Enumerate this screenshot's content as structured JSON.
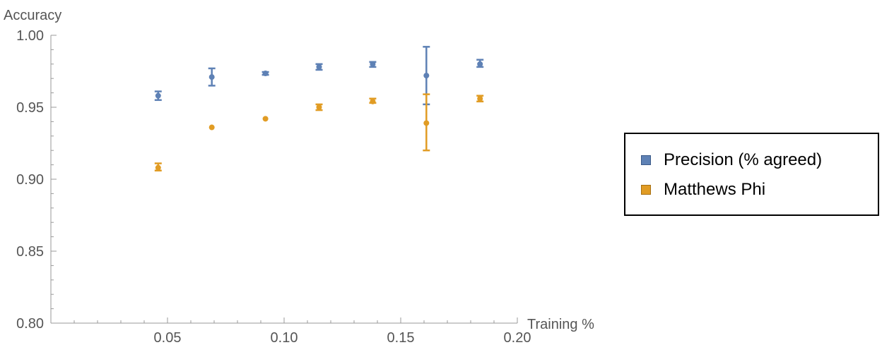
{
  "chart_data": {
    "type": "scatter",
    "xlabel": "Training %",
    "ylabel": "Accuracy",
    "xlim": [
      0.0,
      0.2
    ],
    "ylim": [
      0.8,
      1.0
    ],
    "x_ticks": [
      "0.05",
      "0.10",
      "0.15",
      "0.20"
    ],
    "x_tick_values": [
      0.05,
      0.1,
      0.15,
      0.2
    ],
    "y_ticks": [
      "0.80",
      "0.85",
      "0.90",
      "0.95",
      "1.00"
    ],
    "y_tick_values": [
      0.8,
      0.85,
      0.9,
      0.95,
      1.0
    ],
    "grid": false,
    "legend_position": "right",
    "error_bars": true,
    "series": [
      {
        "name": "Precision (% agreed)",
        "color": "#5e81b5",
        "points": [
          {
            "x": 0.046,
            "y": 0.958,
            "low": 0.955,
            "high": 0.961
          },
          {
            "x": 0.069,
            "y": 0.971,
            "low": 0.965,
            "high": 0.977
          },
          {
            "x": 0.092,
            "y": 0.9735,
            "low": 0.9725,
            "high": 0.9745
          },
          {
            "x": 0.115,
            "y": 0.978,
            "low": 0.976,
            "high": 0.98
          },
          {
            "x": 0.138,
            "y": 0.98,
            "low": 0.978,
            "high": 0.9815
          },
          {
            "x": 0.161,
            "y": 0.972,
            "low": 0.952,
            "high": 0.992
          },
          {
            "x": 0.184,
            "y": 0.98,
            "low": 0.978,
            "high": 0.983
          }
        ]
      },
      {
        "name": "Matthews Phi",
        "color": "#e19c24",
        "points": [
          {
            "x": 0.046,
            "y": 0.908,
            "low": 0.906,
            "high": 0.911
          },
          {
            "x": 0.069,
            "y": 0.936,
            "low": 0.936,
            "high": 0.936
          },
          {
            "x": 0.092,
            "y": 0.942,
            "low": 0.942,
            "high": 0.942
          },
          {
            "x": 0.115,
            "y": 0.95,
            "low": 0.948,
            "high": 0.952
          },
          {
            "x": 0.138,
            "y": 0.954,
            "low": 0.953,
            "high": 0.956
          },
          {
            "x": 0.161,
            "y": 0.939,
            "low": 0.92,
            "high": 0.959
          },
          {
            "x": 0.184,
            "y": 0.956,
            "low": 0.954,
            "high": 0.958
          }
        ]
      }
    ]
  }
}
